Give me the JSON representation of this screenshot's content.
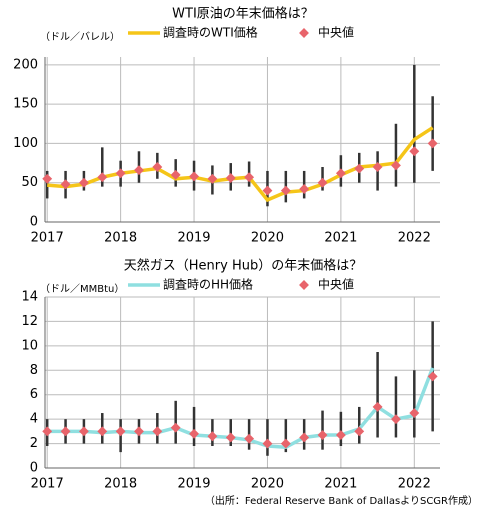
{
  "chart_data": [
    {
      "type": "line",
      "title": "WTI原油の年末価格は？",
      "ylabel": "（ドル／バレル）",
      "x": [
        2017,
        2017.25,
        2017.5,
        2017.75,
        2018,
        2018.25,
        2018.5,
        2018.75,
        2019,
        2019.25,
        2019.5,
        2019.75,
        2020,
        2020.25,
        2020.5,
        2020.75,
        2021,
        2021.25,
        2021.5,
        2021.75,
        2022,
        2022.25
      ],
      "series": [
        {
          "name": "調査時のWTI価格",
          "color": "#f5c518",
          "values": [
            47,
            45,
            48,
            57,
            62,
            65,
            68,
            55,
            57,
            52,
            55,
            57,
            28,
            38,
            40,
            48,
            60,
            70,
            72,
            75,
            105,
            120
          ]
        },
        {
          "name": "中央値",
          "color": "#e8646b",
          "values": [
            55,
            48,
            50,
            57,
            62,
            66,
            70,
            60,
            58,
            55,
            56,
            57,
            40,
            40,
            42,
            50,
            62,
            68,
            70,
            72,
            90,
            100
          ]
        }
      ],
      "low": [
        30,
        30,
        40,
        45,
        45,
        50,
        55,
        45,
        40,
        35,
        40,
        45,
        20,
        25,
        30,
        40,
        45,
        50,
        40,
        45,
        50,
        65
      ],
      "high": [
        65,
        65,
        65,
        95,
        78,
        90,
        88,
        80,
        78,
        72,
        75,
        77,
        65,
        65,
        65,
        70,
        85,
        88,
        90,
        125,
        200,
        160
      ],
      "xlim": [
        2016.97,
        2022.35
      ],
      "xticks": [
        2017,
        2018,
        2019,
        2020,
        2021,
        2022
      ],
      "ylim": [
        0,
        210
      ],
      "yticks": [
        0,
        50,
        100,
        150,
        200
      ],
      "grid": true
    },
    {
      "type": "line",
      "title": "天然ガス（Henry Hub）の年末価格は？",
      "ylabel": "（ドル／MMBtu）",
      "x": [
        2017,
        2017.25,
        2017.5,
        2017.75,
        2018,
        2018.25,
        2018.5,
        2018.75,
        2019,
        2019.25,
        2019.5,
        2019.75,
        2020,
        2020.25,
        2020.5,
        2020.75,
        2021,
        2021.25,
        2021.5,
        2021.75,
        2022,
        2022.25
      ],
      "series": [
        {
          "name": "調査時のHH価格",
          "color": "#8fdfe0",
          "values": [
            3,
            3,
            3,
            2.9,
            3,
            2.9,
            2.9,
            3.3,
            2.7,
            2.6,
            2.5,
            2.3,
            1.8,
            1.7,
            2.5,
            2.7,
            2.7,
            3.2,
            5,
            4,
            4.3,
            8.2
          ]
        },
        {
          "name": "中央値",
          "color": "#e8646b",
          "values": [
            3,
            3,
            3,
            3,
            3,
            3,
            3,
            3.3,
            2.8,
            2.6,
            2.5,
            2.4,
            2,
            2,
            2.5,
            2.7,
            2.7,
            3,
            5,
            4,
            4.5,
            7.5
          ]
        }
      ],
      "low": [
        1.8,
        2,
        2,
        2,
        1.3,
        2,
        2,
        2,
        1.8,
        1.8,
        1.8,
        1.5,
        1,
        1.3,
        1.5,
        1.5,
        1.8,
        2,
        2.5,
        2.5,
        2.5,
        3
      ],
      "high": [
        4,
        4,
        4,
        4.5,
        4,
        4,
        4.5,
        5.5,
        5,
        4,
        4,
        4,
        4,
        4,
        4,
        4.7,
        4.6,
        5,
        9.5,
        7.5,
        8,
        12
      ],
      "xlim": [
        2016.97,
        2022.35
      ],
      "xticks": [
        2017,
        2018,
        2019,
        2020,
        2021,
        2022
      ],
      "ylim": [
        0,
        14
      ],
      "yticks": [
        0,
        2,
        4,
        6,
        8,
        10,
        12,
        14
      ],
      "grid": true
    }
  ],
  "source": "（出所：Federal Reserve Bank of DallasよりSCGR作成）"
}
